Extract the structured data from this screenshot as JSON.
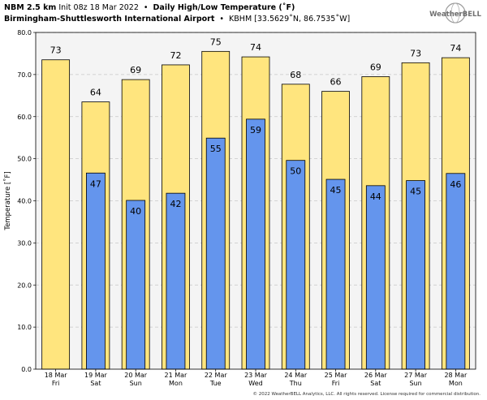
{
  "header": {
    "model": "NBM 2.5 km",
    "init": "Init 08z 18 Mar 2022",
    "product": "Daily High/Low Temperature (˚F)",
    "location": "Birmingham-Shuttlesworth International Airport",
    "station": "KBHM [33.5629˚N, 86.7535˚W]",
    "bullet": "•"
  },
  "logo": {
    "text": "WeatherBELL",
    "icon": "weatherbell-globe-logo"
  },
  "copyright": "© 2022 WeatherBELL Analytics, LLC. All rights reserved. License required for commercial distribution.",
  "colors": {
    "high_fill": "#FFE57E",
    "low_fill": "#6495ED",
    "bar_stroke": "#000000",
    "plot_bg": "#F4F4F4",
    "grid": "#C8C8C8"
  },
  "chart_data": {
    "type": "bar",
    "title": "Daily High/Low Temperature (˚F)",
    "xlabel": "",
    "ylabel": "Temperature [˚F]",
    "ylim": [
      0,
      80
    ],
    "yticks": [
      0,
      10,
      20,
      30,
      40,
      50,
      60,
      70,
      80
    ],
    "ytick_labels": [
      "0.0",
      "10.0",
      "20.0",
      "30.0",
      "40.0",
      "50.0",
      "60.0",
      "70.0",
      "80.0"
    ],
    "grid": true,
    "categories": [
      "18 Mar",
      "19 Mar",
      "20 Mar",
      "21 Mar",
      "22 Mar",
      "23 Mar",
      "24 Mar",
      "25 Mar",
      "26 Mar",
      "27 Mar",
      "28 Mar"
    ],
    "weekdays": [
      "Fri",
      "Sat",
      "Sun",
      "Mon",
      "Tue",
      "Wed",
      "Thu",
      "Fri",
      "Sat",
      "Sun",
      "Mon"
    ],
    "series": [
      {
        "key": "high",
        "values": [
          73.5,
          63.5,
          68.8,
          72.3,
          75.5,
          74.2,
          67.7,
          66,
          69.5,
          72.8,
          74
        ],
        "labels": [
          "73",
          "64",
          "69",
          "72",
          "75",
          "74",
          "68",
          "66",
          "69",
          "73",
          "74"
        ]
      },
      {
        "key": "low",
        "values": [
          null,
          46.6,
          40.1,
          41.8,
          54.9,
          59.4,
          49.6,
          45.1,
          43.6,
          44.8,
          46.5
        ],
        "labels": [
          null,
          "47",
          "40",
          "42",
          "55",
          "59",
          "50",
          "45",
          "44",
          "45",
          "46"
        ]
      }
    ]
  }
}
